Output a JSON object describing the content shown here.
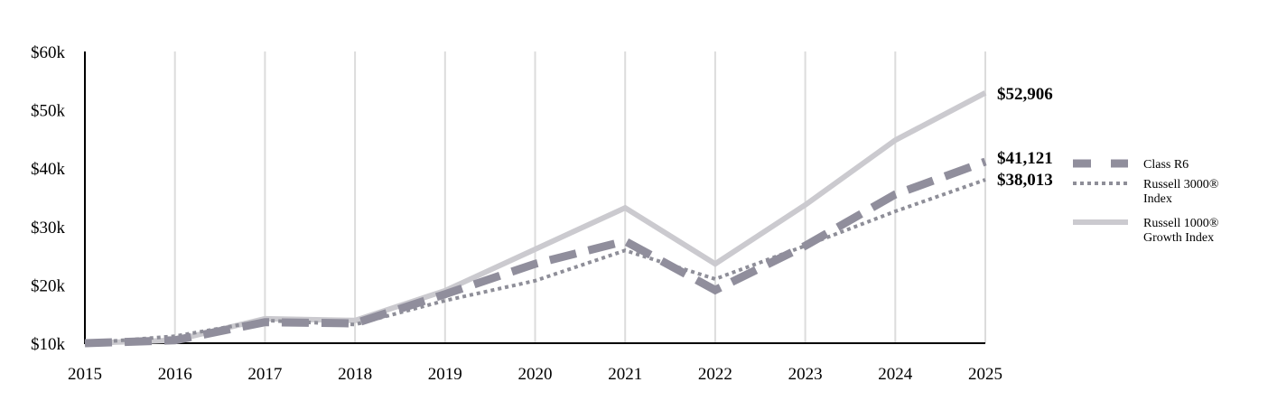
{
  "chart_data": {
    "type": "line",
    "title": "",
    "xlabel": "",
    "ylabel": "",
    "x": [
      "2015",
      "2016",
      "2017",
      "2018",
      "2019",
      "2020",
      "2021",
      "2022",
      "2023",
      "2024",
      "2025"
    ],
    "ylim": [
      10000,
      60000
    ],
    "y_ticks": [
      "$10k",
      "$20k",
      "$30k",
      "$40k",
      "$50k",
      "$60k"
    ],
    "y_tick_values": [
      10000,
      20000,
      30000,
      40000,
      50000,
      60000
    ],
    "grid": "vertical",
    "legend_position": "right",
    "series": [
      {
        "name": "Class R6",
        "style": "dashed",
        "color": "#908e9c",
        "values": [
          10000,
          10500,
          13600,
          13400,
          18400,
          23600,
          27500,
          19100,
          26700,
          35500,
          41121
        ],
        "end_label": "$41,121"
      },
      {
        "name": "Russell 3000® Index",
        "legend_lines": [
          "Russell 3000®",
          "Index"
        ],
        "style": "dotted",
        "color": "#8e8e98",
        "values": [
          10000,
          11200,
          13900,
          13200,
          17300,
          20700,
          25900,
          21000,
          26700,
          32600,
          38013
        ],
        "end_label": "$38,013"
      },
      {
        "name": "Russell 1000® Growth Index",
        "legend_lines": [
          "Russell 1000®",
          "Growth Index"
        ],
        "style": "solid",
        "color": "#cbcacf",
        "values": [
          10000,
          10500,
          14200,
          13900,
          19000,
          26100,
          33200,
          23600,
          33700,
          44800,
          52906
        ],
        "end_label": "$52,906"
      }
    ]
  }
}
